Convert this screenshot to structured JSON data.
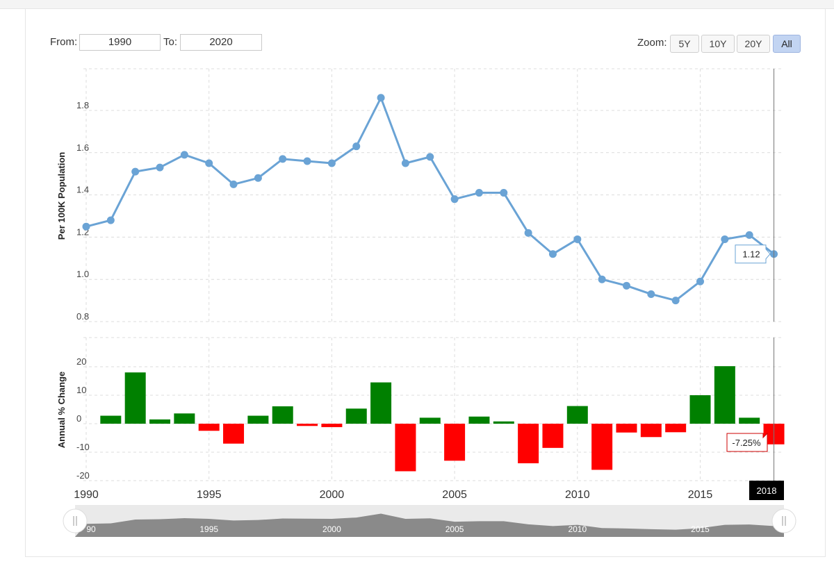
{
  "range": {
    "from_label": "From:",
    "from_value": "1990",
    "to_label": "To:",
    "to_value": "2020"
  },
  "zoom": {
    "label": "Zoom:",
    "buttons": [
      "5Y",
      "10Y",
      "20Y",
      "All"
    ],
    "active": "All"
  },
  "colors": {
    "line": "#6aa3d5",
    "up": "#008000",
    "down": "#ff0000",
    "crosshair": "#888888"
  },
  "chart_data": [
    {
      "type": "line",
      "ylabel": "Per 100K Population",
      "ylim": [
        0.8,
        1.9
      ],
      "yticks": [
        "0.8",
        "1.0",
        "1.2",
        "1.4",
        "1.6",
        "1.8"
      ],
      "grid": true,
      "x": [
        1990,
        1991,
        1992,
        1993,
        1994,
        1995,
        1996,
        1997,
        1998,
        1999,
        2000,
        2001,
        2002,
        2003,
        2004,
        2005,
        2006,
        2007,
        2008,
        2009,
        2010,
        2011,
        2012,
        2013,
        2014,
        2015,
        2016,
        2017,
        2018
      ],
      "values": [
        1.25,
        1.28,
        1.51,
        1.53,
        1.59,
        1.55,
        1.45,
        1.48,
        1.57,
        1.56,
        1.55,
        1.63,
        1.86,
        1.55,
        1.58,
        1.38,
        1.41,
        1.41,
        1.22,
        1.12,
        1.19,
        1.0,
        0.97,
        0.93,
        0.9,
        0.99,
        1.19,
        1.21,
        1.12
      ],
      "tooltip": "1.12"
    },
    {
      "type": "bar",
      "ylabel": "Annual % Change",
      "ylim": [
        -22,
        26
      ],
      "yticks": [
        "-20",
        "-10",
        "0",
        "10",
        "20"
      ],
      "grid": true,
      "x": [
        1991,
        1992,
        1993,
        1994,
        1995,
        1996,
        1997,
        1998,
        1999,
        2000,
        2001,
        2002,
        2003,
        2004,
        2005,
        2006,
        2007,
        2008,
        2009,
        2010,
        2011,
        2012,
        2013,
        2014,
        2015,
        2016,
        2017,
        2018
      ],
      "values": [
        2.8,
        18.0,
        1.5,
        3.6,
        -2.5,
        -7.0,
        2.8,
        6.1,
        -0.8,
        -1.2,
        5.3,
        14.5,
        -16.7,
        2.1,
        -13.0,
        2.5,
        0.8,
        -13.9,
        -8.5,
        6.2,
        -16.2,
        -3.1,
        -4.7,
        -3.0,
        10.0,
        20.2,
        2.1,
        -7.25
      ],
      "tooltip": "-7.25%"
    }
  ],
  "xaxis": {
    "labels": [
      "1990",
      "1995",
      "2000",
      "2005",
      "2010",
      "2015"
    ],
    "crosshair_label": "2018"
  },
  "navigator": {
    "labels": [
      "90",
      "1995",
      "2000",
      "2005",
      "2010",
      "2015"
    ]
  }
}
